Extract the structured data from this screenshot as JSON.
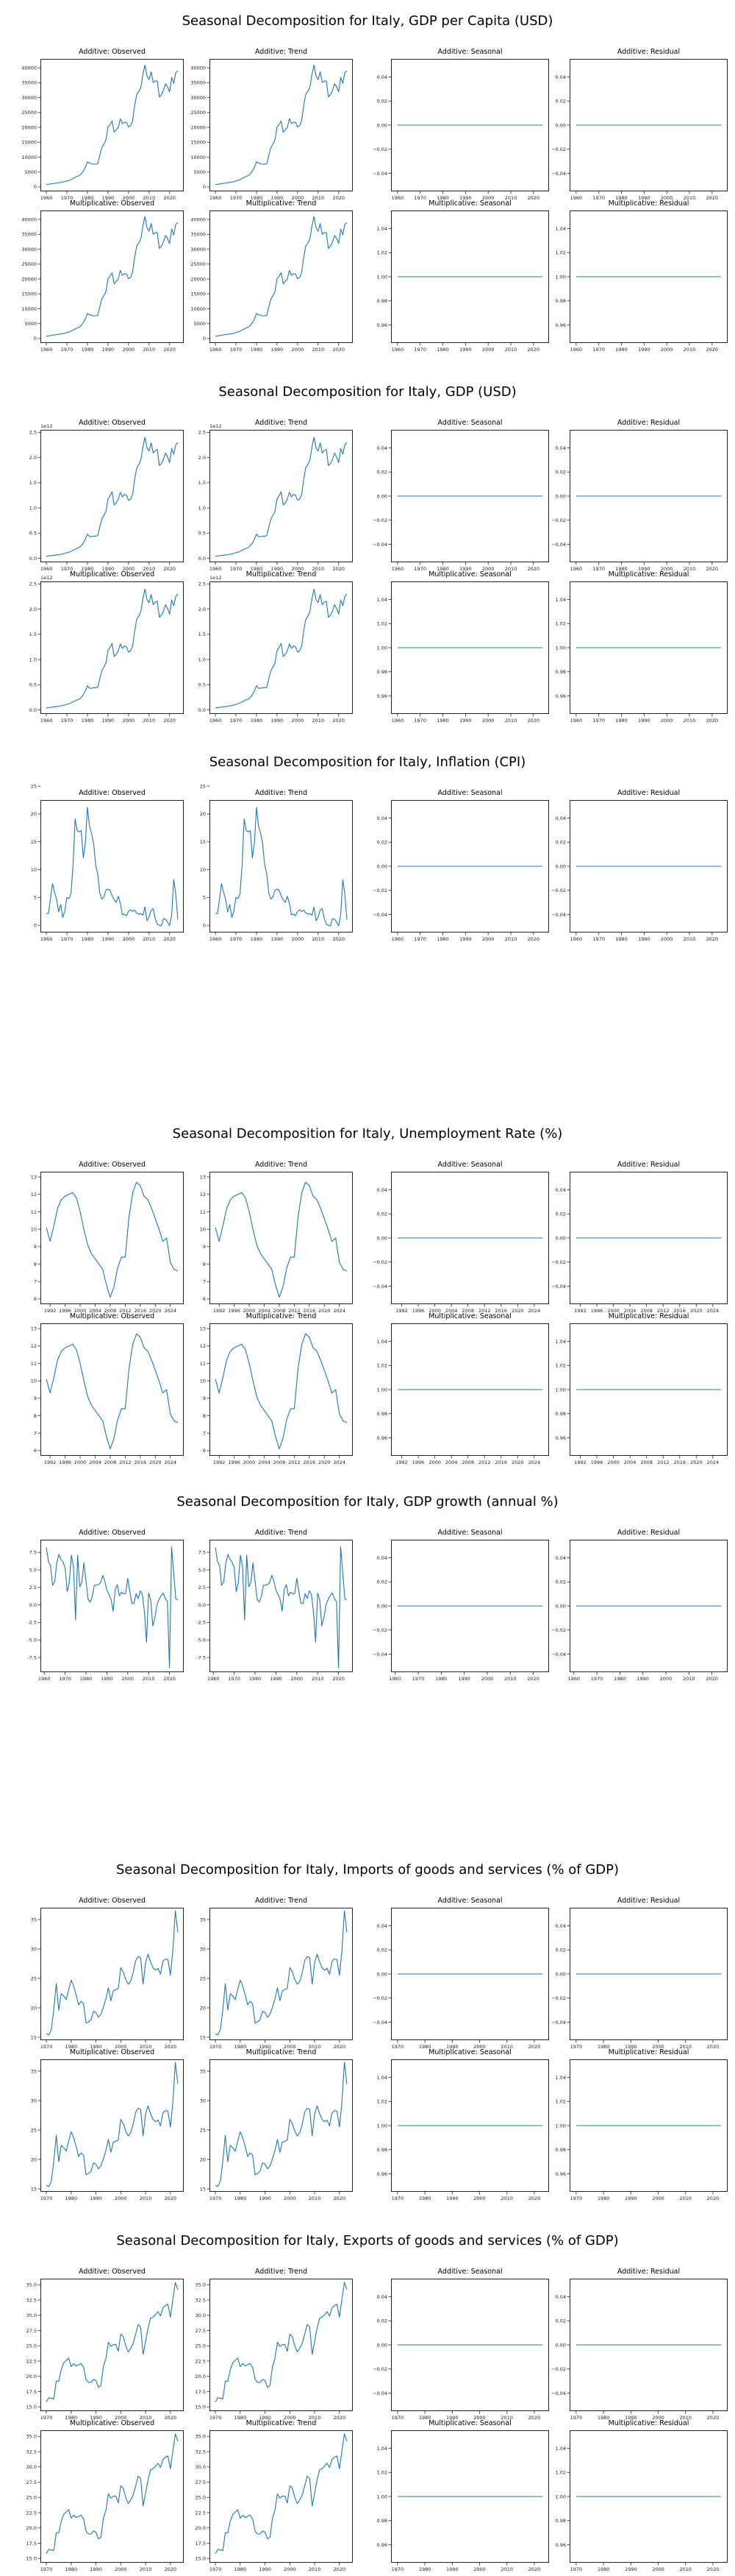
{
  "colors": {
    "line": "#1f77b4",
    "axis": "#222222",
    "background": "#ffffff"
  },
  "figures": [
    {
      "key": "gdppc",
      "title": "Seasonal Decomposition for Italy, GDP per Capita (USD)",
      "rows": 2
    },
    {
      "key": "gdp",
      "title": "Seasonal Decomposition for Italy, GDP (USD)",
      "rows": 2
    },
    {
      "key": "cpi",
      "title": "Seasonal Decomposition for Italy, Inflation (CPI)",
      "rows": 1
    },
    {
      "key": "unemp",
      "title": "Seasonal Decomposition for Italy, Unemployment Rate (%)",
      "rows": 2
    },
    {
      "key": "growth",
      "title": "Seasonal Decomposition for Italy, GDP growth (annual %)",
      "rows": 1
    },
    {
      "key": "imports",
      "title": "Seasonal Decomposition for Italy, Imports of goods and services (% of GDP)",
      "rows": 2
    },
    {
      "key": "exports",
      "title": "Seasonal Decomposition for Italy, Exports of goods and services (% of GDP)",
      "rows": 2
    }
  ],
  "panel_titles": {
    "add_obs": "Additive: Observed",
    "add_trend": "Additive: Trend",
    "add_seas": "Additive: Seasonal",
    "add_resid": "Additive: Residual",
    "mul_obs": "Multiplicative: Observed",
    "mul_trend": "Multiplicative: Trend",
    "mul_seas": "Multiplicative: Seasonal",
    "mul_resid": "Multiplicative: Residual"
  },
  "chart_data": [
    {
      "key": "gdppc",
      "type": "line",
      "title": "Seasonal Decomposition for Italy, GDP per Capita (USD)",
      "x_ticks": [
        "1960",
        "1970",
        "1980",
        "1990",
        "2000",
        "2010",
        "2020"
      ],
      "y_ticks": [
        "0",
        "5000",
        "10000",
        "15000",
        "20000",
        "25000",
        "30000",
        "35000",
        "40000"
      ],
      "ylim": [
        -1500,
        43000
      ],
      "x_start": 1960,
      "values": [
        804,
        877,
        982,
        1106,
        1218,
        1315,
        1401,
        1522,
        1630,
        1770,
        1955,
        2157,
        2456,
        2847,
        3201,
        3561,
        3777,
        4390,
        5340,
        6600,
        8400,
        8050,
        7700,
        7660,
        7650,
        7730,
        10620,
        13230,
        14370,
        15730,
        20140,
        20900,
        22100,
        18380,
        19190,
        19920,
        22890,
        21240,
        21750,
        21630,
        20140,
        20520,
        22320,
        27330,
        31140,
        32040,
        33450,
        37870,
        40940,
        37230,
        36040,
        38650,
        35050,
        35560,
        35560,
        30230,
        30960,
        32410,
        34620,
        33670,
        31910,
        36770,
        34780,
        38370,
        39000
      ]
    },
    {
      "key": "gdp",
      "type": "line",
      "title": "Seasonal Decomposition for Italy, GDP (USD)",
      "offset_label": "1e12",
      "x_ticks": [
        "1960",
        "1970",
        "1980",
        "1990",
        "2000",
        "2010",
        "2020"
      ],
      "y_ticks": [
        "0.0",
        "0.5",
        "1.0",
        "1.5",
        "2.0",
        "2.5"
      ],
      "ylim": [
        -0.08,
        2.55
      ],
      "x_start": 1960,
      "values": [
        0.04,
        0.045,
        0.05,
        0.056,
        0.062,
        0.067,
        0.072,
        0.079,
        0.087,
        0.097,
        0.11,
        0.12,
        0.14,
        0.16,
        0.18,
        0.2,
        0.21,
        0.25,
        0.3,
        0.38,
        0.48,
        0.43,
        0.43,
        0.44,
        0.44,
        0.45,
        0.62,
        0.78,
        0.85,
        0.93,
        1.18,
        1.24,
        1.32,
        1.06,
        1.1,
        1.17,
        1.31,
        1.22,
        1.27,
        1.25,
        1.15,
        1.17,
        1.27,
        1.57,
        1.8,
        1.86,
        1.95,
        2.21,
        2.4,
        2.19,
        2.13,
        2.29,
        2.09,
        2.14,
        2.16,
        1.84,
        1.88,
        1.96,
        2.09,
        2.01,
        1.9,
        2.18,
        2.07,
        2.25,
        2.3
      ]
    },
    {
      "key": "cpi",
      "type": "line",
      "title": "Seasonal Decomposition for Italy, Inflation (CPI)",
      "x_ticks": [
        "1960",
        "1970",
        "1980",
        "1990",
        "2000",
        "2010",
        "2020"
      ],
      "y_ticks": [
        "0",
        "5",
        "10",
        "15",
        "20",
        "25"
      ],
      "ylim": [
        -1.3,
        22.5
      ],
      "x_start": 1960,
      "values": [
        2.1,
        2.1,
        4.7,
        7.5,
        5.9,
        4.6,
        2.4,
        3.7,
        1.4,
        2.6,
        5.0,
        4.8,
        5.7,
        10.8,
        19.1,
        17.0,
        16.8,
        17.0,
        12.1,
        14.8,
        21.2,
        17.8,
        16.5,
        14.7,
        10.8,
        9.2,
        5.8,
        4.7,
        5.1,
        6.3,
        6.5,
        6.3,
        5.3,
        4.6,
        4.1,
        5.2,
        4.0,
        1.9,
        2.0,
        1.7,
        2.5,
        2.8,
        2.5,
        2.7,
        2.2,
        2.0,
        2.1,
        1.8,
        3.3,
        0.8,
        1.5,
        2.7,
        3.0,
        1.2,
        0.2,
        0.0,
        -0.1,
        1.2,
        1.1,
        0.6,
        -0.1,
        1.9,
        8.2,
        5.6,
        1.0
      ]
    },
    {
      "key": "unemp",
      "type": "line",
      "title": "Seasonal Decomposition for Italy, Unemployment Rate (%)",
      "x_ticks": [
        "1992",
        "1996",
        "2000",
        "2004",
        "2008",
        "2012",
        "2016",
        "2020",
        "2024"
      ],
      "y_ticks": [
        "6",
        "7",
        "8",
        "9",
        "10",
        "11",
        "12",
        "13"
      ],
      "ylim": [
        5.7,
        13.3
      ],
      "x_start": 1991,
      "values": [
        10.1,
        9.3,
        10.2,
        11.2,
        11.7,
        11.9,
        12.0,
        12.1,
        11.8,
        11.0,
        10.0,
        9.1,
        8.6,
        8.3,
        8.0,
        7.7,
        6.8,
        6.1,
        6.7,
        7.8,
        8.4,
        8.4,
        10.7,
        12.1,
        12.7,
        12.5,
        11.9,
        11.7,
        11.2,
        10.6,
        10.0,
        9.3,
        9.5,
        8.1,
        7.7,
        7.6
      ]
    },
    {
      "key": "growth",
      "type": "line",
      "title": "Seasonal Decomposition for Italy, GDP growth (annual %)",
      "x_ticks": [
        "1960",
        "1970",
        "1980",
        "1990",
        "2000",
        "2010",
        "2020"
      ],
      "y_ticks": [
        "-7.5",
        "-5.0",
        "-2.5",
        "0.0",
        "2.5",
        "5.0",
        "7.5"
      ],
      "ylim": [
        -9.6,
        9.3
      ],
      "x_start": 1961,
      "values": [
        8.2,
        6.2,
        5.6,
        2.8,
        3.3,
        6.0,
        7.2,
        6.5,
        6.1,
        5.3,
        1.9,
        3.2,
        7.1,
        5.5,
        -2.1,
        7.1,
        2.6,
        3.2,
        6.0,
        3.4,
        0.8,
        0.4,
        1.2,
        2.8,
        2.8,
        2.9,
        3.2,
        4.2,
        3.4,
        2.1,
        1.5,
        0.8,
        -0.9,
        2.2,
        2.9,
        1.3,
        1.8,
        1.6,
        1.6,
        3.8,
        1.9,
        0.2,
        0.2,
        1.6,
        0.9,
        2.0,
        1.5,
        -1.0,
        -5.3,
        1.7,
        0.7,
        -3.0,
        -1.8,
        0.0,
        0.8,
        1.3,
        1.7,
        0.9,
        0.5,
        -9.0,
        8.3,
        4.7,
        0.9,
        0.7
      ]
    },
    {
      "key": "imports",
      "type": "line",
      "title": "Seasonal Decomposition for Italy, Imports of goods and services (% of GDP)",
      "x_ticks": [
        "1970",
        "1980",
        "1990",
        "2000",
        "2010",
        "2020"
      ],
      "y_ticks": [
        "15",
        "20",
        "25",
        "30",
        "35"
      ],
      "ylim": [
        14.5,
        37.0
      ],
      "x_start": 1970,
      "values": [
        15.6,
        15.4,
        16.3,
        19.7,
        24.1,
        19.6,
        22.4,
        22.0,
        21.4,
        23.1,
        24.7,
        23.7,
        22.2,
        20.5,
        21.1,
        20.7,
        17.4,
        17.6,
        18.0,
        19.4,
        19.2,
        18.4,
        18.9,
        20.1,
        21.5,
        23.4,
        21.2,
        22.9,
        23.1,
        23.3,
        26.8,
        26.1,
        24.8,
        24.0,
        24.5,
        26.0,
        28.0,
        28.7,
        28.5,
        24.0,
        27.7,
        29.1,
        27.8,
        26.8,
        26.4,
        26.7,
        25.7,
        27.9,
        28.3,
        28.2,
        25.5,
        29.7,
        36.5,
        32.8
      ]
    },
    {
      "key": "exports",
      "type": "line",
      "title": "Seasonal Decomposition for Italy, Exports of goods and services (% of GDP)",
      "x_ticks": [
        "1970",
        "1980",
        "1990",
        "2000",
        "2010",
        "2020"
      ],
      "y_ticks": [
        "15.0",
        "17.5",
        "20.0",
        "22.5",
        "25.0",
        "27.5",
        "30.0",
        "32.5",
        "35.0"
      ],
      "ylim": [
        14.3,
        36.0
      ],
      "x_start": 1970,
      "values": [
        15.8,
        16.5,
        16.4,
        16.3,
        19.2,
        19.2,
        21.1,
        22.2,
        22.6,
        23.0,
        21.6,
        22.1,
        21.7,
        21.9,
        22.1,
        21.5,
        19.5,
        19.0,
        19.0,
        19.5,
        19.3,
        18.2,
        18.5,
        21.6,
        22.9,
        25.6,
        24.9,
        25.2,
        25.2,
        24.1,
        26.9,
        26.5,
        25.0,
        24.0,
        24.6,
        25.4,
        26.9,
        28.5,
        28.1,
        23.6,
        25.7,
        27.9,
        29.5,
        29.7,
        30.1,
        30.6,
        29.9,
        31.2,
        31.6,
        31.8,
        29.7,
        32.6,
        35.4,
        34.2
      ]
    }
  ]
}
